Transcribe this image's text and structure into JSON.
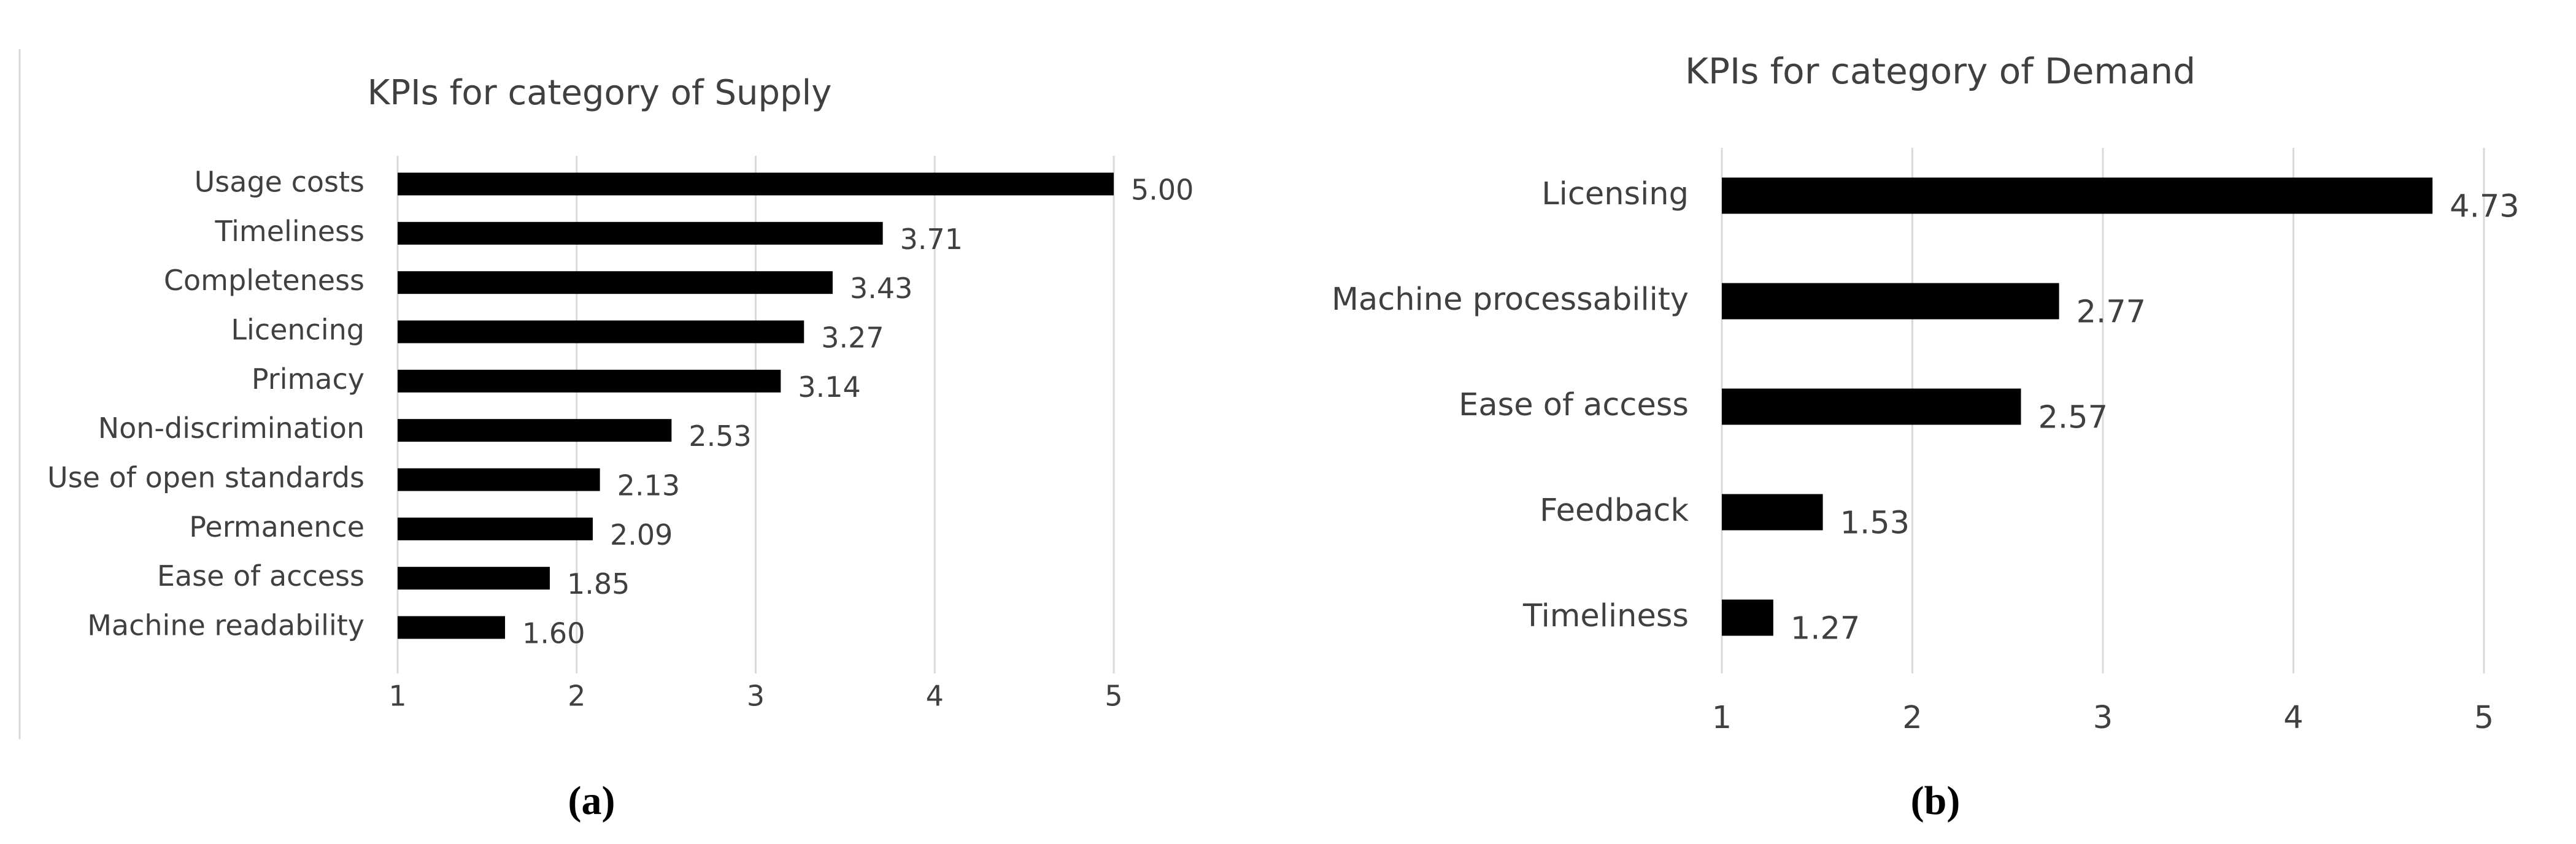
{
  "chart_data": [
    {
      "type": "bar",
      "orientation": "horizontal",
      "title": "KPIs for category of Supply",
      "caption": "(a)",
      "categories": [
        "Usage costs",
        "Timeliness",
        "Completeness",
        "Licencing",
        "Primacy",
        "Non-discrimination",
        "Use of open standards",
        "Permanence",
        "Ease of access",
        "Machine readability"
      ],
      "values": [
        5.0,
        3.71,
        3.43,
        3.27,
        3.14,
        2.53,
        2.13,
        2.09,
        1.85,
        1.6
      ],
      "value_labels": [
        "5.00",
        "3.71",
        "3.43",
        "3.27",
        "3.14",
        "2.53",
        "2.13",
        "2.09",
        "1.85",
        "1.60"
      ],
      "color": "#000000",
      "xlim": [
        1,
        5
      ],
      "xticks": [
        1,
        2,
        3,
        4,
        5
      ],
      "grid": true
    },
    {
      "type": "bar",
      "orientation": "horizontal",
      "title": "KPIs for category of Demand",
      "caption": "(b)",
      "categories": [
        "Licensing",
        "Machine processability",
        "Ease of access",
        "Feedback",
        "Timeliness"
      ],
      "values": [
        4.73,
        2.77,
        2.57,
        1.53,
        1.27
      ],
      "value_labels": [
        "4.73",
        "2.77",
        "2.57",
        "1.53",
        "1.27"
      ],
      "color": "#000000",
      "xlim": [
        1,
        5
      ],
      "xticks": [
        1,
        2,
        3,
        4,
        5
      ],
      "grid": true
    }
  ]
}
